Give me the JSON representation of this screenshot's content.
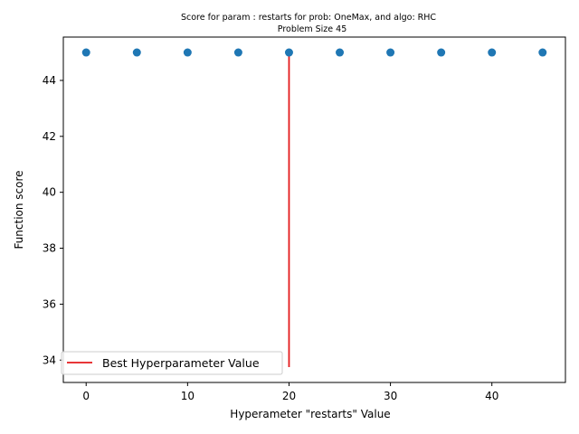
{
  "chart_data": {
    "type": "scatter",
    "title_line1": "Score for param : restarts for prob: OneMax, and algo: RHC",
    "title_line2": "Problem Size 45",
    "xlabel": "Hyperameter \"restarts\" Value",
    "ylabel": "Function score",
    "xlim": [
      -2.25,
      47.25
    ],
    "ylim": [
      33.2,
      45.55
    ],
    "xticks": [
      0,
      10,
      20,
      30,
      40
    ],
    "yticks": [
      34,
      36,
      38,
      40,
      42,
      44
    ],
    "grid": false,
    "legend_position": "lower-left",
    "x": [
      0,
      5,
      10,
      15,
      20,
      25,
      30,
      35,
      40,
      45
    ],
    "y": [
      45,
      45,
      45,
      45,
      45,
      45,
      45,
      45,
      45,
      45
    ],
    "point_color": "#1f77b4",
    "best_line": {
      "label": "Best Hyperparameter Value",
      "x": 20,
      "y_from": 33.75,
      "y_to": 45,
      "color": "#e41a1c"
    }
  }
}
